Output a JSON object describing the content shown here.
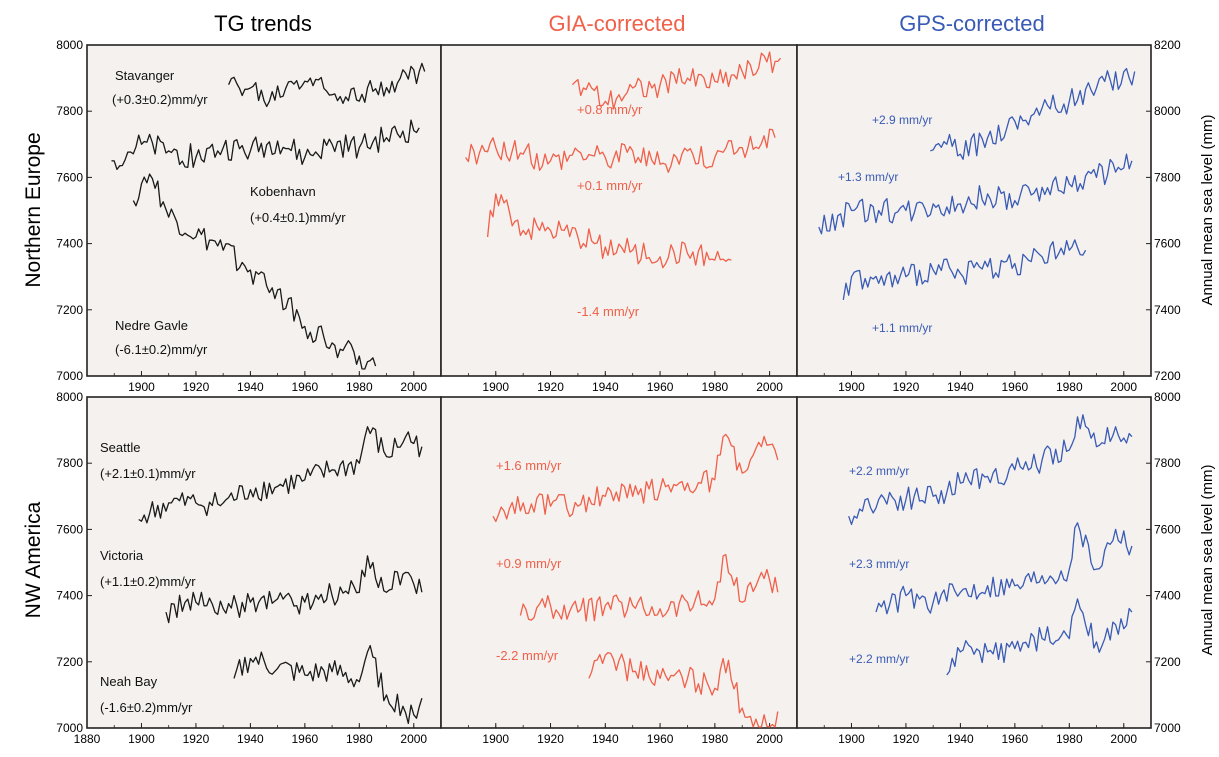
{
  "column_titles": [
    {
      "text": "TG trends",
      "color": "#000000"
    },
    {
      "text": "GIA-corrected",
      "color": "#f0604a"
    },
    {
      "text": "GPS-corrected",
      "color": "#3a5bb5"
    }
  ],
  "row_titles": [
    "Northern Europe",
    "NW America"
  ],
  "right_axis_label": "Annual mean sea level (mm)",
  "colors": {
    "tg": "#1a1a1a",
    "gia": "#f0604a",
    "gps": "#3a5bb5",
    "panel_bg": "#f4f1ee",
    "frame": "#222222"
  },
  "chart_data": [
    {
      "type": "line",
      "panel": "Northern Europe / TG trends",
      "xlim": [
        1880,
        2010
      ],
      "ylim": [
        7000,
        8000
      ],
      "xticks": [
        "1900",
        "1920",
        "1940",
        "1960",
        "1980",
        "2000"
      ],
      "yticks": [
        "7000",
        "7200",
        "7400",
        "7600",
        "7800",
        "8000"
      ],
      "series": [
        {
          "name": "Stavanger",
          "x": [
            1932,
            1940,
            1947,
            1955,
            1962,
            1970,
            1978,
            1985,
            1992,
            2004
          ],
          "y": [
            7880,
            7870,
            7830,
            7890,
            7900,
            7850,
            7870,
            7860,
            7890,
            7920
          ]
        },
        {
          "name": "Kobenhavn",
          "x": [
            1889,
            1900,
            1910,
            1920,
            1930,
            1940,
            1950,
            1960,
            1970,
            1980,
            1990,
            2002
          ],
          "y": [
            7650,
            7700,
            7680,
            7660,
            7690,
            7680,
            7710,
            7660,
            7700,
            7690,
            7720,
            7750
          ]
        },
        {
          "name": "Nedre Gavle",
          "x": [
            1897,
            1903,
            1910,
            1920,
            1930,
            1940,
            1950,
            1960,
            1970,
            1980,
            1986
          ],
          "y": [
            7530,
            7610,
            7480,
            7420,
            7380,
            7320,
            7260,
            7150,
            7100,
            7060,
            7030
          ]
        }
      ],
      "annotations": [
        "Stavanger",
        "(+0.3±0.2)mm/yr",
        "Kobenhavn",
        "(+0.4±0.1)mm/yr",
        "Nedre Gavle",
        "(-6.1±0.2)mm/yr"
      ]
    },
    {
      "type": "line",
      "panel": "Northern Europe / GIA-corrected",
      "xlim": [
        1880,
        2010
      ],
      "xticks": [
        "1900",
        "1920",
        "1940",
        "1960",
        "1980",
        "2000"
      ],
      "series": [
        {
          "x": [
            1928,
            1935,
            1940,
            1945,
            1950,
            1960,
            1970,
            1980,
            1990,
            2004
          ],
          "y": [
            7880,
            7870,
            7830,
            7850,
            7870,
            7880,
            7900,
            7890,
            7920,
            7960
          ]
        },
        {
          "x": [
            1889,
            1900,
            1910,
            1920,
            1930,
            1940,
            1950,
            1960,
            1970,
            1980,
            1990,
            2002
          ],
          "y": [
            7660,
            7690,
            7670,
            7650,
            7680,
            7660,
            7680,
            7640,
            7680,
            7660,
            7690,
            7720
          ]
        },
        {
          "x": [
            1897,
            1900,
            1910,
            1920,
            1930,
            1940,
            1950,
            1960,
            1970,
            1980,
            1986
          ],
          "y": [
            7420,
            7550,
            7440,
            7440,
            7420,
            7390,
            7380,
            7360,
            7370,
            7350,
            7350
          ]
        }
      ],
      "annotations": [
        "+0.8 mm/yr",
        "+0.1 mm/yr",
        "-1.4 mm/yr"
      ]
    },
    {
      "type": "line",
      "panel": "Northern Europe / GPS-corrected",
      "xlim": [
        1880,
        2010
      ],
      "ylim": [
        7200,
        8200
      ],
      "xticks": [
        "1900",
        "1920",
        "1940",
        "1960",
        "1980",
        "2000"
      ],
      "yticks": [
        "7200",
        "7400",
        "7600",
        "7800",
        "8000",
        "8200"
      ],
      "series": [
        {
          "x": [
            1929,
            1935,
            1940,
            1950,
            1960,
            1970,
            1980,
            1990,
            2004
          ],
          "y": [
            7880,
            7900,
            7870,
            7920,
            7970,
            8010,
            8030,
            8070,
            8120
          ]
        },
        {
          "x": [
            1888,
            1900,
            1910,
            1920,
            1930,
            1940,
            1950,
            1960,
            1970,
            1980,
            1990,
            2003
          ],
          "y": [
            7650,
            7700,
            7700,
            7700,
            7720,
            7720,
            7750,
            7730,
            7770,
            7780,
            7800,
            7850
          ]
        },
        {
          "x": [
            1897,
            1900,
            1910,
            1920,
            1930,
            1940,
            1950,
            1960,
            1970,
            1980,
            1986
          ],
          "y": [
            7430,
            7500,
            7480,
            7500,
            7520,
            7510,
            7530,
            7540,
            7560,
            7580,
            7580
          ]
        }
      ],
      "annotations": [
        "+2.9 mm/yr",
        "+1.3 mm/yr",
        "+1.1 mm/yr"
      ]
    },
    {
      "type": "line",
      "panel": "NW America / TG trends",
      "xlim": [
        1880,
        2010
      ],
      "ylim": [
        7000,
        8000
      ],
      "xticks": [
        "1880",
        "1900",
        "1920",
        "1940",
        "1960",
        "1980",
        "2000"
      ],
      "yticks": [
        "7000",
        "7200",
        "7400",
        "7600",
        "7800",
        "8000"
      ],
      "series": [
        {
          "name": "Seattle",
          "x": [
            1899,
            1910,
            1920,
            1930,
            1940,
            1950,
            1960,
            1970,
            1980,
            1983,
            1990,
            1997,
            2003
          ],
          "y": [
            7630,
            7680,
            7680,
            7680,
            7720,
            7730,
            7750,
            7780,
            7800,
            7910,
            7820,
            7880,
            7850
          ]
        },
        {
          "name": "Victoria",
          "x": [
            1909,
            1920,
            1930,
            1940,
            1950,
            1960,
            1970,
            1980,
            1983,
            1990,
            1997,
            2003
          ],
          "y": [
            7350,
            7380,
            7360,
            7380,
            7390,
            7380,
            7400,
            7410,
            7520,
            7410,
            7470,
            7410
          ]
        },
        {
          "name": "Neah Bay",
          "x": [
            1934,
            1940,
            1950,
            1960,
            1970,
            1980,
            1983,
            1990,
            2000,
            2003
          ],
          "y": [
            7150,
            7210,
            7180,
            7160,
            7170,
            7140,
            7230,
            7100,
            7040,
            7090
          ]
        }
      ],
      "annotations": [
        "Seattle",
        "(+2.1±0.1)mm/yr",
        "Victoria",
        "(+1.1±0.2)mm/yr",
        "Neah Bay",
        "(-1.6±0.2)mm/yr"
      ]
    },
    {
      "type": "line",
      "panel": "NW America / GIA-corrected",
      "xlim": [
        1880,
        2010
      ],
      "xticks": [
        "1900",
        "1920",
        "1940",
        "1960",
        "1980",
        "2000"
      ],
      "series": [
        {
          "x": [
            1899,
            1910,
            1920,
            1930,
            1940,
            1950,
            1960,
            1970,
            1980,
            1983,
            1990,
            1997,
            2003
          ],
          "y": [
            7640,
            7680,
            7670,
            7670,
            7700,
            7700,
            7720,
            7740,
            7750,
            7880,
            7770,
            7850,
            7810
          ]
        },
        {
          "x": [
            1909,
            1920,
            1930,
            1940,
            1950,
            1960,
            1970,
            1980,
            1983,
            1990,
            1997,
            2003
          ],
          "y": [
            7340,
            7370,
            7350,
            7370,
            7370,
            7360,
            7380,
            7390,
            7520,
            7380,
            7470,
            7410
          ]
        },
        {
          "x": [
            1934,
            1940,
            1950,
            1960,
            1970,
            1980,
            1983,
            1990,
            2000,
            2003
          ],
          "y": [
            7150,
            7220,
            7170,
            7150,
            7150,
            7120,
            7210,
            7060,
            6990,
            7050
          ]
        }
      ],
      "annotations": [
        "+1.6 mm/yr",
        "+0.9 mm/yr",
        "-2.2 mm/yr"
      ]
    },
    {
      "type": "line",
      "panel": "NW America / GPS-corrected",
      "xlim": [
        1880,
        2010
      ],
      "ylim": [
        7000,
        8000
      ],
      "xticks": [
        "1900",
        "1920",
        "1940",
        "1960",
        "1980",
        "2000"
      ],
      "yticks": [
        "7000",
        "7200",
        "7400",
        "7600",
        "7800",
        "8000"
      ],
      "series": [
        {
          "x": [
            1899,
            1910,
            1920,
            1930,
            1940,
            1950,
            1960,
            1970,
            1980,
            1983,
            1990,
            1997,
            2003
          ],
          "y": [
            7640,
            7690,
            7690,
            7700,
            7740,
            7760,
            7780,
            7810,
            7840,
            7940,
            7850,
            7910,
            7880
          ]
        },
        {
          "x": [
            1909,
            1920,
            1930,
            1940,
            1950,
            1960,
            1970,
            1980,
            1983,
            1990,
            1997,
            2003
          ],
          "y": [
            7350,
            7400,
            7380,
            7410,
            7430,
            7430,
            7460,
            7480,
            7620,
            7480,
            7600,
            7550
          ]
        },
        {
          "x": [
            1935,
            1940,
            1950,
            1960,
            1970,
            1980,
            1983,
            1990,
            2000,
            2003
          ],
          "y": [
            7160,
            7230,
            7230,
            7240,
            7270,
            7270,
            7390,
            7260,
            7300,
            7350
          ]
        }
      ],
      "annotations": [
        "+2.2 mm/yr",
        "+2.3 mm/yr",
        "+2.2 mm/yr"
      ]
    }
  ]
}
